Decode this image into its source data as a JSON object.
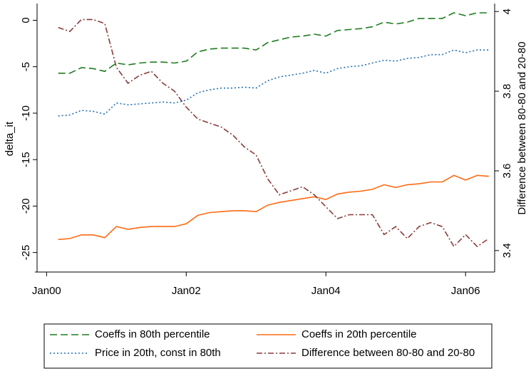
{
  "chart_data": {
    "type": "line",
    "y_label": "delta_it",
    "y2_label": "Difference between 80-80 and 20-80",
    "x": [
      "2000-03",
      "2000-05",
      "2000-07",
      "2000-09",
      "2000-11",
      "2001-01",
      "2001-03",
      "2001-05",
      "2001-07",
      "2001-09",
      "2001-11",
      "2002-01",
      "2002-03",
      "2002-05",
      "2002-07",
      "2002-09",
      "2002-11",
      "2003-01",
      "2003-03",
      "2003-05",
      "2003-07",
      "2003-09",
      "2003-11",
      "2004-01",
      "2004-03",
      "2004-05",
      "2004-07",
      "2004-09",
      "2004-11",
      "2005-01",
      "2005-03",
      "2005-05",
      "2005-07",
      "2005-09",
      "2005-11",
      "2006-01",
      "2006-03",
      "2006-05"
    ],
    "xlim": [
      "1999-11",
      "2006-06"
    ],
    "xticks": [
      {
        "value": "2000-01",
        "label": "Jan00"
      },
      {
        "value": "2002-01",
        "label": "Jan02"
      },
      {
        "value": "2004-01",
        "label": "Jan04"
      },
      {
        "value": "2006-01",
        "label": "Jan06"
      }
    ],
    "ylim": [
      -27.1,
      1.8
    ],
    "yticks": [
      0,
      -5,
      -10,
      -15,
      -20,
      -25
    ],
    "y2lim": [
      3.346,
      4.02
    ],
    "y2ticks": [
      4,
      3.8,
      3.6,
      3.4
    ],
    "series": [
      {
        "name": "Coeffs in 80th percentile",
        "color": "#1f7d1f",
        "dash": "10,5",
        "values": [
          -5.7,
          -5.7,
          -5.1,
          -5.2,
          -5.5,
          -4.6,
          -4.8,
          -4.6,
          -4.5,
          -4.5,
          -4.6,
          -4.4,
          -3.4,
          -3.1,
          -3.0,
          -3.0,
          -3.0,
          -3.2,
          -2.4,
          -2.1,
          -1.8,
          -1.7,
          -1.5,
          -1.7,
          -1.1,
          -1.0,
          -0.9,
          -0.7,
          -0.2,
          -0.4,
          -0.2,
          0.2,
          0.2,
          0.2,
          0.8,
          0.5,
          0.8,
          0.8
        ]
      },
      {
        "name": "Coeffs in 20th percentile",
        "color": "#ff6a13",
        "dash": "none",
        "values": [
          -23.6,
          -23.5,
          -23.1,
          -23.1,
          -23.4,
          -22.2,
          -22.5,
          -22.3,
          -22.2,
          -22.2,
          -22.2,
          -21.9,
          -21.0,
          -20.7,
          -20.6,
          -20.5,
          -20.5,
          -20.6,
          -19.9,
          -19.6,
          -19.4,
          -19.2,
          -19.0,
          -19.3,
          -18.7,
          -18.5,
          -18.4,
          -18.2,
          -17.7,
          -18.0,
          -17.7,
          -17.6,
          -17.4,
          -17.4,
          -16.7,
          -17.2,
          -16.7,
          -16.8
        ]
      },
      {
        "name": "Price in 20th, const in 80th",
        "color": "#1f6fb5",
        "dash": "2,3",
        "values": [
          -10.3,
          -10.2,
          -9.7,
          -9.8,
          -10.1,
          -8.9,
          -9.1,
          -9.0,
          -8.9,
          -8.8,
          -8.9,
          -8.6,
          -7.8,
          -7.5,
          -7.3,
          -7.3,
          -7.2,
          -7.3,
          -6.5,
          -6.1,
          -5.9,
          -5.7,
          -5.4,
          -5.7,
          -5.2,
          -5.0,
          -4.9,
          -4.6,
          -4.3,
          -4.4,
          -4.1,
          -4.0,
          -3.7,
          -3.7,
          -3.2,
          -3.5,
          -3.2,
          -3.2
        ]
      },
      {
        "name": "Difference between 80-80 and 20-80",
        "color": "#8b3a3a",
        "dash": "8,3,2,3",
        "axis": "y2",
        "values": [
          3.96,
          3.95,
          3.98,
          3.98,
          3.97,
          3.86,
          3.82,
          3.84,
          3.85,
          3.82,
          3.8,
          3.76,
          3.73,
          3.72,
          3.71,
          3.69,
          3.66,
          3.64,
          3.58,
          3.54,
          3.55,
          3.56,
          3.54,
          3.51,
          3.48,
          3.49,
          3.49,
          3.49,
          3.44,
          3.46,
          3.43,
          3.46,
          3.47,
          3.46,
          3.41,
          3.44,
          3.41,
          3.43
        ]
      }
    ],
    "legend": "bottom"
  }
}
